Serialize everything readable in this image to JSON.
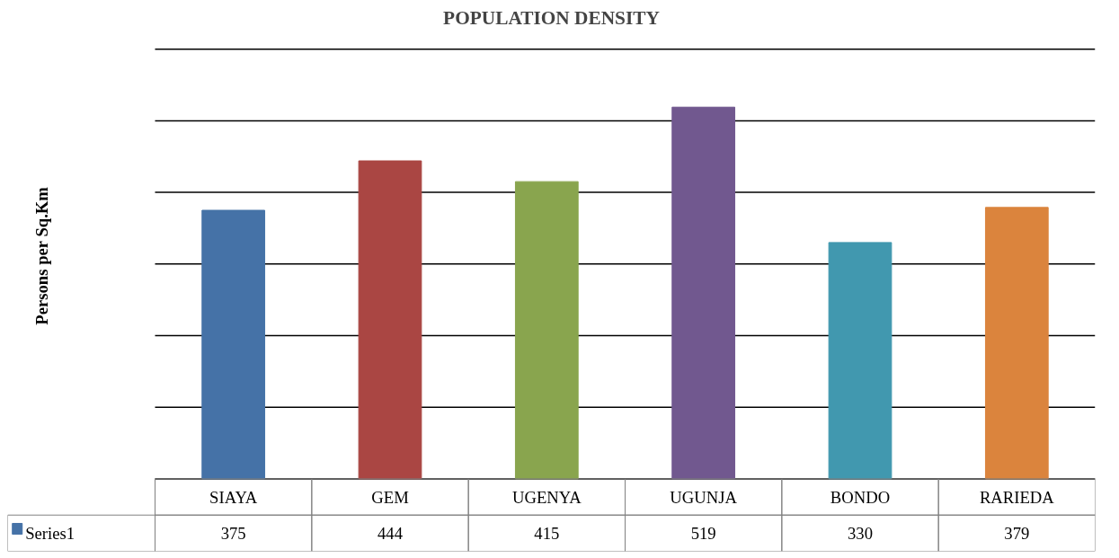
{
  "chart_data": {
    "type": "bar",
    "title": "POPULATION DENSITY",
    "categories": [
      "SIAYA",
      "GEM",
      "UGENYA",
      "UGUNJA",
      "BONDO",
      "RARIEDA"
    ],
    "series": [
      {
        "name": "Series1",
        "colors": [
          "#4572a7",
          "#aa4643",
          "#89a54e",
          "#71588f",
          "#4198af",
          "#db843d"
        ],
        "values": [
          375,
          444,
          415,
          519,
          330,
          379
        ]
      }
    ],
    "annotations": [
      "Persons per Sq.Km"
    ],
    "grid": "y",
    "data_labels": true,
    "legend": "bottom left"
  }
}
